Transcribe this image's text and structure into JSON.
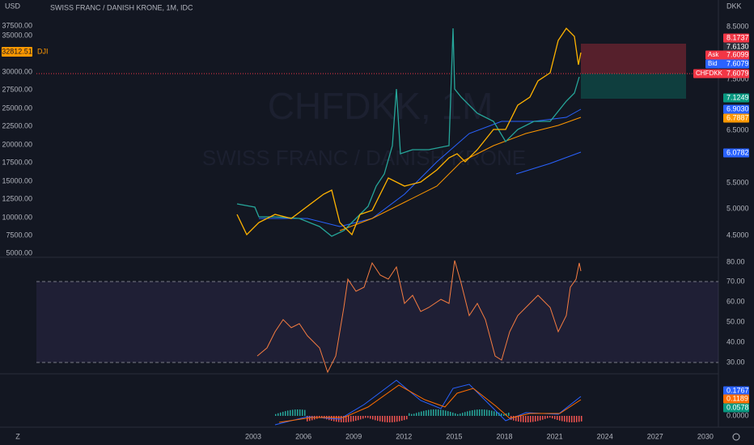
{
  "header": {
    "title": "SWISS FRANC / DANISH KRONE, 1M, IDC"
  },
  "watermark": {
    "symbol": "CHFDKK, 1M",
    "name": "SWISS FRANC / DANISH KRONE"
  },
  "left_axis": {
    "unit": "USD",
    "labels": [
      "37500.00",
      "35000.00",
      "30000.00",
      "27500.00",
      "25000.00",
      "22500.00",
      "20000.00",
      "17500.00",
      "15000.00",
      "12500.00",
      "10000.00",
      "7500.00",
      "5000.00"
    ]
  },
  "dji_tag": {
    "value": "32812.51",
    "symbol": "DJI",
    "color": "#ff9800"
  },
  "right_axis": {
    "unit": "DKK",
    "labels": [
      "8.5000",
      "7.5000",
      "6.5000",
      "5.5000",
      "5.0000",
      "4.5000"
    ]
  },
  "price_tags": [
    {
      "label": "8.1737",
      "color": "#f23645"
    },
    {
      "label": "7.6130",
      "color": "#2a2e39"
    },
    {
      "prefix": "Ask",
      "label": "7.6099",
      "color": "#f23645"
    },
    {
      "prefix": "Bid",
      "label": "7.6079",
      "color": "#2962ff"
    },
    {
      "prefix": "CHFDKK",
      "label": "7.6079",
      "color": "#f23645"
    },
    {
      "label": "7.1249",
      "color": "#089981"
    },
    {
      "label": "6.9030",
      "color": "#2962ff"
    },
    {
      "label": "6.7887",
      "color": "#ff9800"
    },
    {
      "label": "6.0782",
      "color": "#2962ff"
    }
  ],
  "rsi_axis": {
    "labels": [
      "80.00",
      "70.00",
      "60.00",
      "50.00",
      "40.00",
      "30.00"
    ]
  },
  "macd_tags": [
    {
      "label": "0.1767",
      "color": "#2962ff"
    },
    {
      "label": "0.1189",
      "color": "#ff6d00"
    },
    {
      "label": "0.0578",
      "color": "#089981"
    },
    {
      "label": "0.0000",
      "color": null
    }
  ],
  "time_axis": {
    "labels": [
      "2003",
      "2006",
      "2009",
      "2012",
      "2015",
      "2018",
      "2021",
      "2024",
      "2027",
      "2030"
    ]
  }
}
